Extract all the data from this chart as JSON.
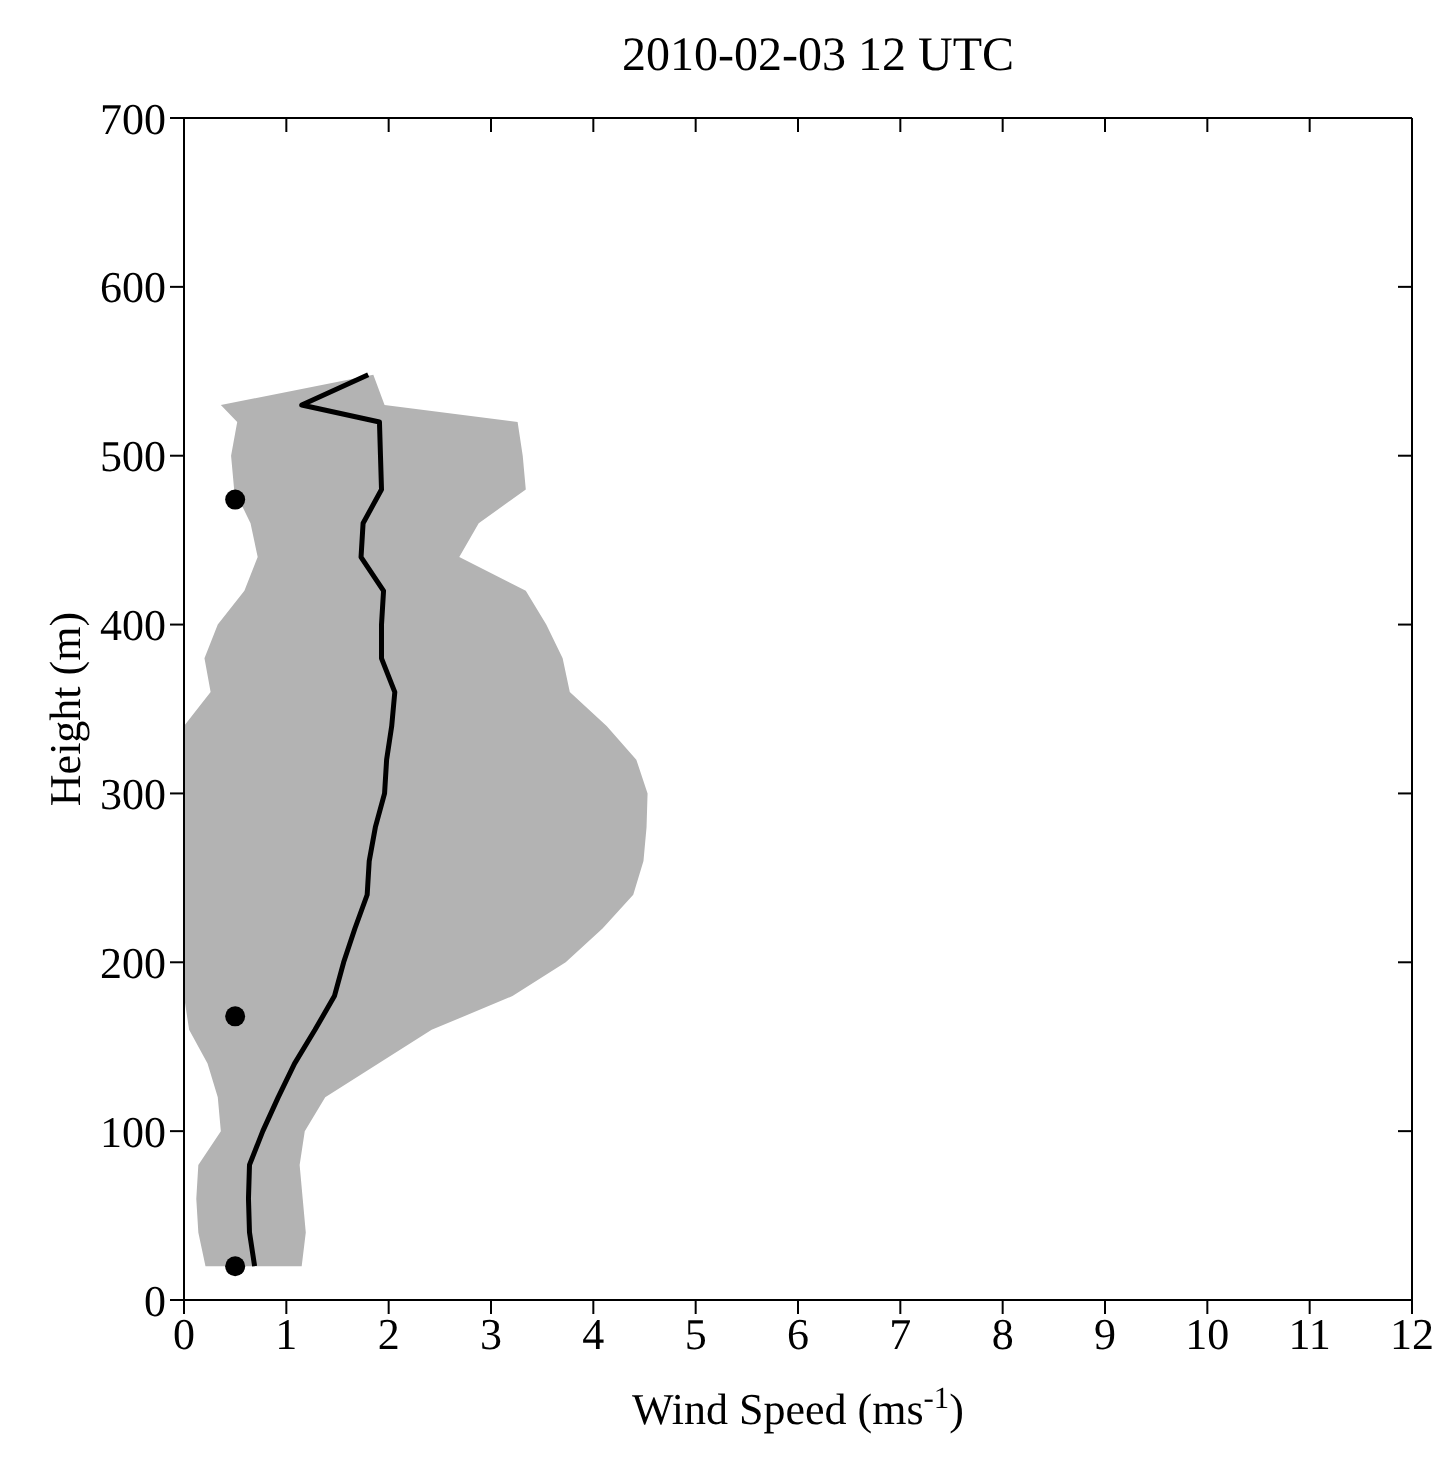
{
  "chart_data": {
    "type": "line",
    "title": "2010-02-03 12 UTC",
    "xlabel": "Wind Speed (ms$^{-1}$)",
    "ylabel": "Height (m)",
    "orientation": "horizontal",
    "xlim": [
      0,
      12
    ],
    "xticks": [
      0,
      1,
      2,
      3,
      4,
      5,
      6,
      7,
      8,
      9,
      10,
      11,
      12
    ],
    "ylim": [
      0,
      700
    ],
    "yticks": [
      0,
      100,
      200,
      300,
      400,
      500,
      600,
      700
    ],
    "legend": false,
    "series": [
      {
        "color": "#000000",
        "marker": "none",
        "line_style": "solid",
        "x": [
          20,
          40,
          60,
          80,
          100,
          120,
          140,
          160,
          180,
          200,
          220,
          240,
          260,
          280,
          300,
          320,
          340,
          360,
          380,
          400,
          420,
          440,
          460,
          480,
          500,
          520,
          530,
          548
        ],
        "values": [
          0.69,
          0.64,
          0.63,
          0.64,
          0.77,
          0.92,
          1.08,
          1.28,
          1.47,
          1.56,
          1.67,
          1.79,
          1.81,
          1.87,
          1.96,
          1.98,
          2.03,
          2.06,
          1.93,
          1.93,
          1.95,
          1.73,
          1.75,
          1.93,
          1.92,
          1.91,
          1.15,
          1.8
        ],
        "lower": [
          0.21,
          0.14,
          0.12,
          0.14,
          0.36,
          0.33,
          0.23,
          0.05,
          0,
          0,
          0,
          0,
          0,
          0,
          0,
          0,
          0,
          0.26,
          0.2,
          0.33,
          0.59,
          0.72,
          0.65,
          0.49,
          0.46,
          0.52,
          0.36,
          1.85
        ],
        "upper": [
          1.15,
          1.19,
          1.16,
          1.13,
          1.18,
          1.38,
          1.9,
          2.42,
          3.21,
          3.73,
          4.09,
          4.39,
          4.49,
          4.52,
          4.53,
          4.42,
          4.13,
          3.77,
          3.7,
          3.54,
          3.34,
          2.69,
          2.88,
          3.34,
          3.31,
          3.26,
          1.96,
          1.85
        ]
      },
      {
        "type": "scatter",
        "color": "#000000",
        "marker": "circle",
        "x": [
          20,
          168,
          474
        ],
        "values": [
          0.5,
          0.5,
          0.5
        ]
      }
    ]
  }
}
